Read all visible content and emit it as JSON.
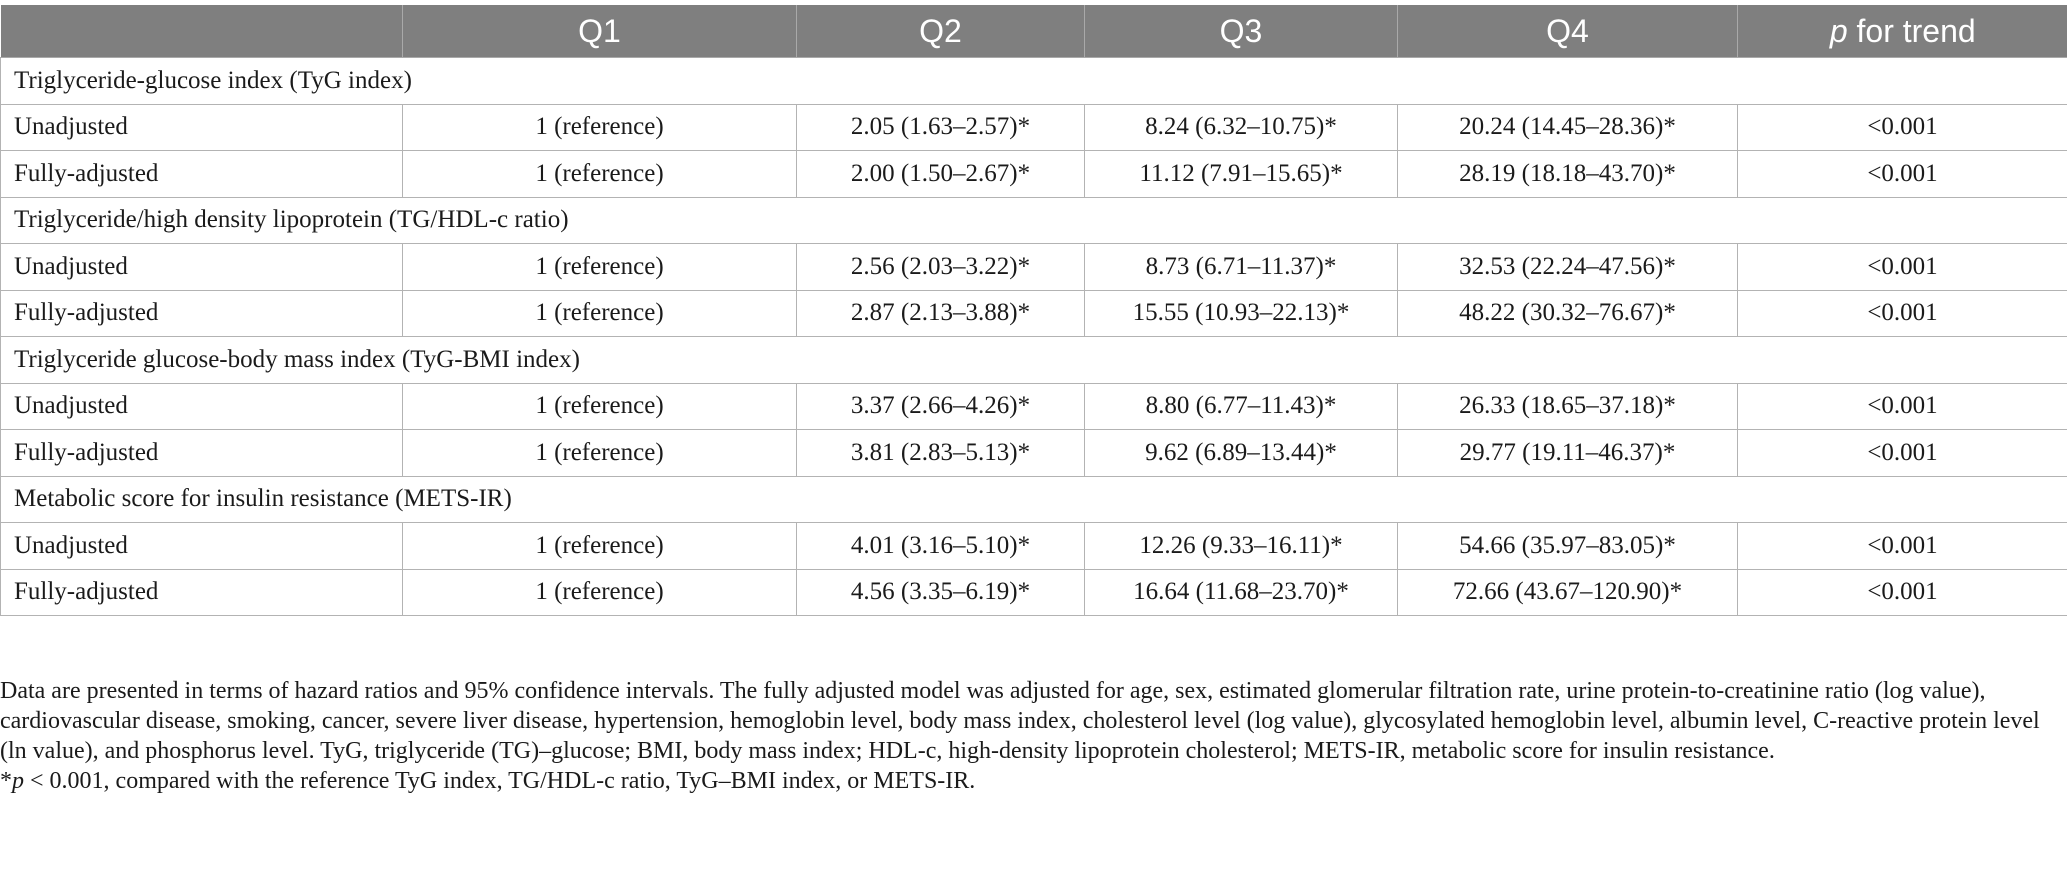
{
  "header": {
    "col0": "",
    "col1": "Q1",
    "col2": "Q2",
    "col3": "Q3",
    "col4": "Q4",
    "col5_italic": "p",
    "col5_rest": " for trend"
  },
  "groups": [
    {
      "title": "Triglyceride-glucose index (TyG index)",
      "rows": [
        {
          "label": "Unadjusted",
          "q1": "1 (reference)",
          "q2": "2.05 (1.63–2.57)*",
          "q3": "8.24 (6.32–10.75)*",
          "q4": "20.24 (14.45–28.36)*",
          "p": "<0.001"
        },
        {
          "label": "Fully-adjusted",
          "q1": "1 (reference)",
          "q2": "2.00 (1.50–2.67)*",
          "q3": "11.12 (7.91–15.65)*",
          "q4": "28.19 (18.18–43.70)*",
          "p": "<0.001"
        }
      ]
    },
    {
      "title": "Triglyceride/high density lipoprotein (TG/HDL-c ratio)",
      "rows": [
        {
          "label": "Unadjusted",
          "q1": "1 (reference)",
          "q2": "2.56 (2.03–3.22)*",
          "q3": "8.73 (6.71–11.37)*",
          "q4": "32.53 (22.24–47.56)*",
          "p": "<0.001"
        },
        {
          "label": "Fully-adjusted",
          "q1": "1 (reference)",
          "q2": "2.87 (2.13–3.88)*",
          "q3": "15.55 (10.93–22.13)*",
          "q4": "48.22 (30.32–76.67)*",
          "p": "<0.001"
        }
      ]
    },
    {
      "title": "Triglyceride glucose-body mass index (TyG-BMI index)",
      "rows": [
        {
          "label": "Unadjusted",
          "q1": "1 (reference)",
          "q2": "3.37 (2.66–4.26)*",
          "q3": "8.80 (6.77–11.43)*",
          "q4": "26.33 (18.65–37.18)*",
          "p": "<0.001"
        },
        {
          "label": "Fully-adjusted",
          "q1": "1 (reference)",
          "q2": "3.81 (2.83–5.13)*",
          "q3": "9.62 (6.89–13.44)*",
          "q4": "29.77 (19.11–46.37)*",
          "p": "<0.001"
        }
      ]
    },
    {
      "title": "Metabolic score for insulin resistance (METS-IR)",
      "rows": [
        {
          "label": "Unadjusted",
          "q1": "1 (reference)",
          "q2": "4.01 (3.16–5.10)*",
          "q3": "12.26 (9.33–16.11)*",
          "q4": "54.66 (35.97–83.05)*",
          "p": "<0.001"
        },
        {
          "label": "Fully-adjusted",
          "q1": "1 (reference)",
          "q2": "4.56 (3.35–6.19)*",
          "q3": "16.64 (11.68–23.70)*",
          "q4": "72.66 (43.67–120.90)*",
          "p": "<0.001"
        }
      ]
    }
  ],
  "notes": {
    "paragraph": "Data are presented in terms of hazard ratios and 95% confidence intervals. The fully adjusted model was adjusted for age, sex, estimated glomerular filtration rate, urine protein-to-creatinine ratio (log value), cardiovascular disease, smoking, cancer, severe liver disease, hypertension, hemoglobin level, body mass index, cholesterol level (log value), glycosylated hemoglobin level, albumin level, C-reactive protein level (ln value), and phosphorus level. TyG, triglyceride (TG)–glucose; BMI, body mass index; HDL-c, high-density lipoprotein cholesterol; METS-IR, metabolic score for insulin resistance.",
    "footnote_star": "*",
    "footnote_p": "p",
    "footnote_rest": " < 0.001, compared with the reference TyG index, TG/HDL-c ratio, TyG–BMI index, or METS-IR."
  }
}
